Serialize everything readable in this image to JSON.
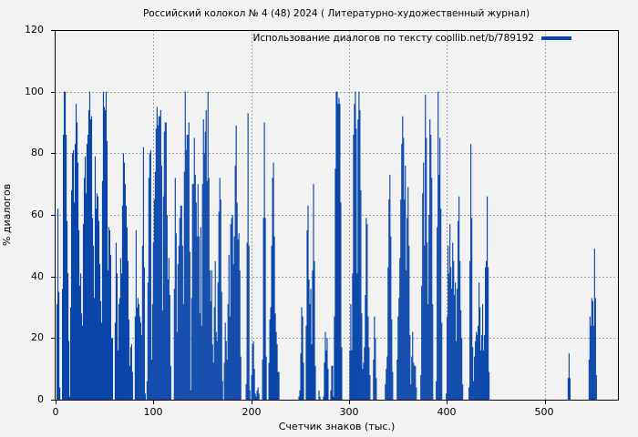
{
  "title": "Российский колокол № 4 (48) 2024 ( Литературно-художественный журнал)",
  "legend": {
    "label": "Использование диалогов по тексту coollib.net/b/789192",
    "color": "#0a46aa",
    "position": "upper right"
  },
  "axes": {
    "xlabel": "Счетчик знаков (тыс.)",
    "ylabel": "% диалогов",
    "yticks": [
      "0",
      "20",
      "40",
      "60",
      "80",
      "100",
      "120"
    ],
    "xticks": [
      "0",
      "100",
      "200",
      "300",
      "400",
      "500"
    ]
  },
  "colors": {
    "bar": "#0a46aa",
    "background": "#f2f2f2",
    "grid": "#a0a0a0",
    "axis": "#000000"
  },
  "chart_data": {
    "type": "bar",
    "title": "Российский колокол № 4 (48) 2024 ( Литературно-художественный журнал)",
    "xlabel": "Счетчик знаков (тыс.)",
    "ylabel": "% диалогов",
    "xlim": [
      0,
      575
    ],
    "ylim": [
      0,
      120
    ],
    "xticks": [
      0,
      100,
      200,
      300,
      400,
      500
    ],
    "yticks": [
      0,
      20,
      40,
      60,
      80,
      100,
      120
    ],
    "grid": true,
    "legend_position": "upper right",
    "series": [
      {
        "name": "Использование диалогов по тексту coollib.net/b/789192",
        "color": "#0a46aa"
      }
    ],
    "x_start": 0,
    "x_step": 0.93,
    "values": [
      0,
      31,
      62,
      35,
      4,
      0,
      0,
      36,
      86,
      100,
      100,
      86,
      58,
      41,
      19,
      1,
      30,
      68,
      80,
      81,
      64,
      83,
      96,
      90,
      77,
      55,
      37,
      41,
      28,
      24,
      57,
      72,
      79,
      67,
      83,
      86,
      94,
      100,
      91,
      92,
      59,
      50,
      33,
      79,
      62,
      67,
      66,
      58,
      44,
      32,
      25,
      71,
      100,
      95,
      94,
      100,
      84,
      42,
      56,
      55,
      47,
      20,
      20,
      0,
      0,
      25,
      51,
      41,
      16,
      31,
      33,
      46,
      41,
      63,
      80,
      77,
      70,
      63,
      56,
      45,
      26,
      11,
      17,
      18,
      9,
      0,
      0,
      27,
      55,
      30,
      33,
      31,
      27,
      25,
      21,
      50,
      82,
      43,
      2,
      0,
      6,
      38,
      72,
      80,
      81,
      13,
      31,
      51,
      65,
      74,
      88,
      95,
      89,
      92,
      92,
      94,
      76,
      29,
      66,
      87,
      90,
      90,
      60,
      39,
      46,
      34,
      11,
      0,
      0,
      0,
      36,
      72,
      54,
      22,
      44,
      50,
      59,
      63,
      63,
      50,
      31,
      74,
      100,
      81,
      86,
      86,
      90,
      48,
      3,
      33,
      70,
      70,
      85,
      73,
      64,
      53,
      70,
      53,
      28,
      56,
      24,
      70,
      91,
      80,
      87,
      94,
      71,
      100,
      72,
      42,
      32,
      42,
      18,
      12,
      30,
      45,
      22,
      19,
      38,
      61,
      72,
      65,
      35,
      6,
      0,
      12,
      25,
      19,
      13,
      31,
      47,
      27,
      57,
      59,
      60,
      44,
      53,
      76,
      89,
      64,
      52,
      54,
      42,
      14,
      0,
      0,
      0,
      0,
      0,
      5,
      51,
      93,
      50,
      3,
      0,
      8,
      18,
      19,
      10,
      2,
      1,
      3,
      4,
      2,
      0,
      0,
      0,
      13,
      59,
      90,
      59,
      14,
      0,
      0,
      12,
      26,
      30,
      50,
      72,
      77,
      53,
      28,
      22,
      18,
      9,
      9,
      0,
      0,
      0,
      0,
      0,
      0,
      0,
      0,
      0,
      0,
      0,
      0,
      0,
      0,
      0,
      0,
      0,
      0,
      0,
      0,
      0,
      1,
      3,
      15,
      30,
      27,
      12,
      0,
      0,
      24,
      55,
      63,
      39,
      31,
      36,
      18,
      42,
      70,
      45,
      11,
      0,
      0,
      0,
      3,
      1,
      0,
      0,
      0,
      1,
      12,
      22,
      16,
      20,
      10,
      0,
      0,
      3,
      11,
      11,
      1,
      27,
      75,
      100,
      100,
      96,
      98,
      96,
      64,
      17,
      0,
      0,
      0,
      0,
      0,
      0,
      0,
      0,
      16,
      31,
      16,
      41,
      86,
      96,
      100,
      88,
      41,
      91,
      100,
      94,
      68,
      28,
      10,
      12,
      17,
      34,
      59,
      57,
      27,
      17,
      8,
      0,
      0,
      0,
      13,
      27,
      20,
      7,
      0,
      0,
      0,
      0,
      0,
      0,
      0,
      0,
      0,
      5,
      10,
      14,
      43,
      65,
      73,
      53,
      26,
      9,
      0,
      0,
      0,
      0,
      13,
      27,
      33,
      46,
      65,
      83,
      92,
      85,
      65,
      76,
      42,
      59,
      69,
      50,
      21,
      5,
      14,
      22,
      12,
      11,
      11,
      4,
      0,
      0,
      0,
      0,
      8,
      37,
      67,
      77,
      50,
      99,
      85,
      51,
      31,
      60,
      91,
      86,
      72,
      31,
      0,
      0,
      0,
      6,
      56,
      100,
      73,
      85,
      62,
      25,
      0,
      0,
      0,
      0,
      2,
      27,
      50,
      41,
      57,
      43,
      36,
      51,
      45,
      34,
      38,
      19,
      36,
      58,
      66,
      45,
      29,
      20,
      5,
      0,
      0,
      0,
      0,
      0,
      0,
      4,
      45,
      83,
      59,
      17,
      6,
      14,
      19,
      22,
      21,
      24,
      38,
      30,
      16,
      21,
      31,
      16,
      21,
      43,
      45,
      66,
      43,
      9,
      0,
      0,
      0,
      0,
      0,
      0,
      0,
      0,
      0,
      0,
      0,
      0,
      0,
      0,
      0,
      0,
      0,
      0,
      0,
      0,
      0,
      0,
      0,
      0,
      0,
      0,
      0,
      0,
      0,
      0,
      0,
      0,
      0,
      0,
      0,
      0,
      0,
      0,
      0,
      0,
      0,
      0,
      0,
      0,
      0,
      0,
      0,
      0,
      0,
      0,
      0,
      0,
      0,
      0,
      0,
      0,
      0,
      0,
      0,
      0,
      0,
      0,
      0,
      0,
      0,
      0,
      0,
      0,
      0,
      0,
      0,
      0,
      0,
      0,
      0,
      0,
      0,
      0,
      0,
      0,
      0,
      0,
      0,
      0,
      0,
      0,
      7,
      15,
      7,
      0,
      0,
      0,
      0,
      0,
      0,
      0,
      0,
      0,
      0,
      0,
      0,
      0,
      0,
      0,
      0,
      0,
      0,
      0,
      0,
      13,
      27,
      24,
      33,
      32,
      24,
      49,
      33,
      8
    ]
  }
}
